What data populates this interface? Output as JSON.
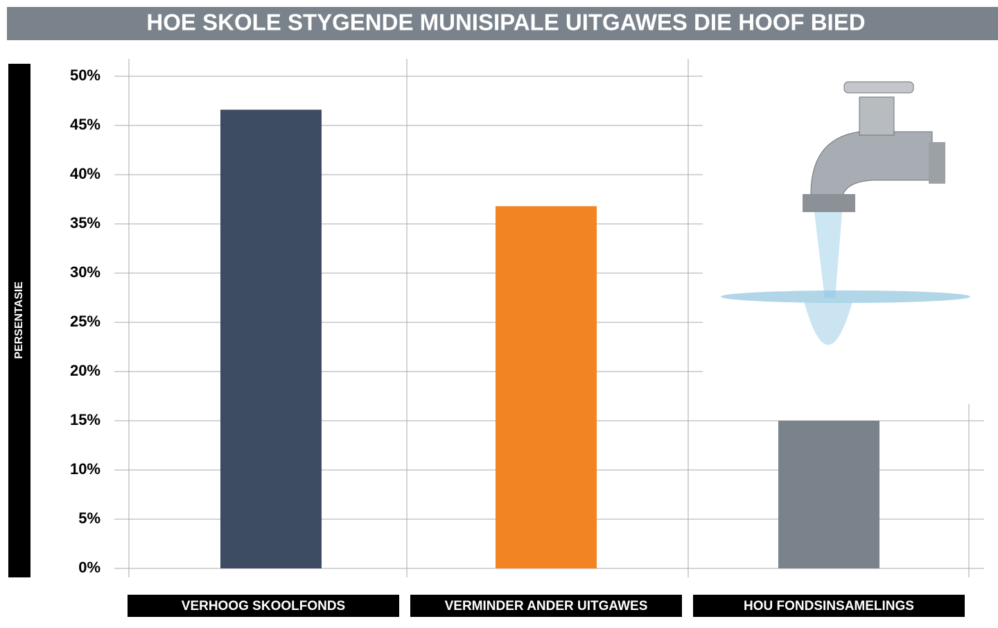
{
  "chart_data": {
    "type": "bar",
    "title": "HOE SKOLE STYGENDE MUNISIPALE UITGAWES DIE HOOF BIED",
    "y_label": "PERSENTASIE",
    "categories": [
      "VERHOOG SKOOLFONDS",
      "VERMINDER ANDER UITGAWES",
      "HOU FONDSINSAMELINGS"
    ],
    "values": [
      46.6,
      36.8,
      15.0
    ],
    "colors": [
      "#3d4c63",
      "#f28522",
      "#7a838c"
    ],
    "ylim": [
      0,
      50
    ],
    "yticks": [
      {
        "value": 0,
        "label": "0%"
      },
      {
        "value": 5,
        "label": "5%"
      },
      {
        "value": 10,
        "label": "10%"
      },
      {
        "value": 15,
        "label": "15%"
      },
      {
        "value": 20,
        "label": "20%"
      },
      {
        "value": 25,
        "label": "25%"
      },
      {
        "value": 30,
        "label": "30%"
      },
      {
        "value": 35,
        "label": "35%"
      },
      {
        "value": 40,
        "label": "40%"
      },
      {
        "value": 45,
        "label": "45%"
      },
      {
        "value": 50,
        "label": "50%"
      }
    ],
    "grid": true
  }
}
